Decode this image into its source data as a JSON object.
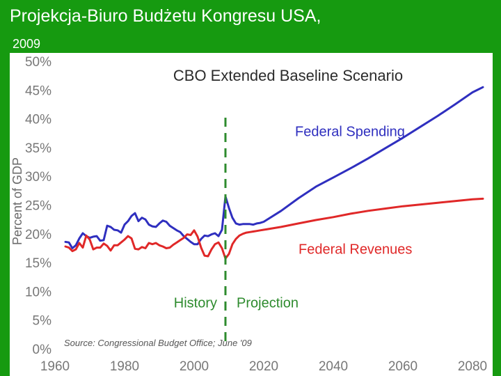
{
  "slide": {
    "title": "Projekcja-Biuro Budżetu Kongresu USA,",
    "year": "2009"
  },
  "colors": {
    "background": "#169a10",
    "spending": "#2f2fbf",
    "revenues": "#e02828",
    "divider": "#2e8b2e"
  },
  "chart_data": {
    "type": "line",
    "title": "CBO Extended Baseline Scenario",
    "xlabel": "",
    "ylabel": "Percent of GDP",
    "xlim": [
      1960,
      2085
    ],
    "ylim": [
      0,
      50
    ],
    "xticks": [
      1960,
      1980,
      2000,
      2020,
      2040,
      2060,
      2080
    ],
    "yticks": [
      0,
      5,
      10,
      15,
      20,
      25,
      30,
      35,
      40,
      45,
      50
    ],
    "ytick_labels": [
      "0%",
      "5%",
      "10%",
      "15%",
      "20%",
      "25%",
      "30%",
      "35%",
      "40%",
      "45%",
      "50%"
    ],
    "grid": false,
    "divider": {
      "x": 2009,
      "left_label": "History",
      "right_label": "Projection"
    },
    "source": "Source: Congressional Budget Office; June '09",
    "series": [
      {
        "name": "Federal Spending",
        "x": [
          1963,
          1964,
          1965,
          1966,
          1967,
          1968,
          1969,
          1970,
          1971,
          1972,
          1973,
          1974,
          1975,
          1976,
          1977,
          1978,
          1979,
          1980,
          1981,
          1982,
          1983,
          1984,
          1985,
          1986,
          1987,
          1988,
          1989,
          1990,
          1991,
          1992,
          1993,
          1994,
          1995,
          1996,
          1997,
          1998,
          1999,
          2000,
          2001,
          2002,
          2003,
          2004,
          2005,
          2006,
          2007,
          2008,
          2009,
          2010,
          2011,
          2012,
          2013,
          2014,
          2015,
          2016,
          2017,
          2018,
          2019,
          2020,
          2025,
          2030,
          2035,
          2040,
          2045,
          2050,
          2055,
          2060,
          2065,
          2070,
          2075,
          2080,
          2083
        ],
        "values": [
          18.6,
          18.5,
          17.5,
          18.0,
          19.2,
          20.1,
          19.6,
          19.3,
          19.5,
          19.6,
          18.8,
          18.9,
          21.4,
          21.2,
          20.7,
          20.6,
          20.2,
          21.6,
          22.2,
          23.1,
          23.6,
          22.2,
          22.8,
          22.5,
          21.6,
          21.3,
          21.2,
          21.8,
          22.3,
          22.1,
          21.4,
          21.0,
          20.6,
          20.3,
          19.6,
          19.1,
          18.6,
          18.2,
          18.2,
          19.1,
          19.7,
          19.6,
          19.9,
          20.1,
          19.6,
          20.7,
          26.5,
          24.5,
          22.8,
          21.8,
          21.6,
          21.7,
          21.7,
          21.7,
          21.6,
          21.8,
          21.9,
          22.1,
          24.0,
          26.2,
          28.2,
          29.8,
          31.4,
          33.1,
          34.9,
          36.7,
          38.6,
          40.5,
          42.5,
          44.6,
          45.5
        ]
      },
      {
        "name": "Federal Revenues",
        "x": [
          1963,
          1964,
          1965,
          1966,
          1967,
          1968,
          1969,
          1970,
          1971,
          1972,
          1973,
          1974,
          1975,
          1976,
          1977,
          1978,
          1979,
          1980,
          1981,
          1982,
          1983,
          1984,
          1985,
          1986,
          1987,
          1988,
          1989,
          1990,
          1991,
          1992,
          1993,
          1994,
          1995,
          1996,
          1997,
          1998,
          1999,
          2000,
          2001,
          2002,
          2003,
          2004,
          2005,
          2006,
          2007,
          2008,
          2009,
          2010,
          2011,
          2012,
          2013,
          2014,
          2015,
          2016,
          2017,
          2018,
          2019,
          2020,
          2025,
          2030,
          2035,
          2040,
          2045,
          2050,
          2055,
          2060,
          2065,
          2070,
          2075,
          2080,
          2083
        ],
        "values": [
          17.8,
          17.6,
          17.0,
          17.3,
          18.4,
          17.6,
          19.7,
          19.0,
          17.3,
          17.6,
          17.6,
          18.3,
          17.9,
          17.1,
          18.0,
          18.0,
          18.5,
          19.0,
          19.6,
          19.2,
          17.4,
          17.3,
          17.7,
          17.5,
          18.4,
          18.2,
          18.4,
          18.0,
          17.8,
          17.5,
          17.6,
          18.1,
          18.5,
          18.9,
          19.3,
          19.9,
          19.8,
          20.6,
          19.5,
          17.6,
          16.2,
          16.1,
          17.3,
          18.2,
          18.5,
          17.5,
          15.7,
          16.5,
          18.2,
          19.1,
          19.7,
          20.0,
          20.2,
          20.3,
          20.4,
          20.5,
          20.6,
          20.7,
          21.2,
          21.8,
          22.4,
          22.9,
          23.5,
          24.0,
          24.4,
          24.8,
          25.1,
          25.4,
          25.7,
          26.0,
          26.1
        ]
      }
    ]
  }
}
